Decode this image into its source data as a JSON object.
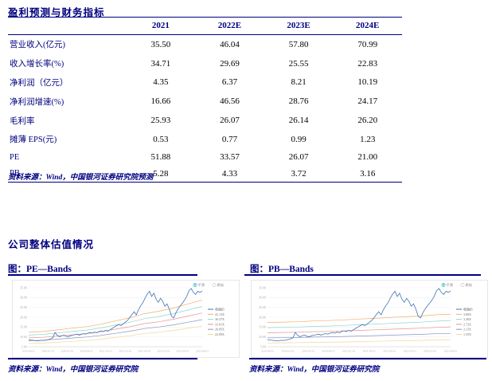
{
  "section1_title": "盈利预测与财务指标",
  "table": {
    "header": [
      "2021",
      "2022E",
      "2023E",
      "2024E"
    ],
    "rows": [
      {
        "label": "营业收入(亿元)",
        "values": [
          "35.50",
          "46.04",
          "57.80",
          "70.99"
        ]
      },
      {
        "label": "收入增长率(%)",
        "values": [
          "34.71",
          "29.69",
          "25.55",
          "22.83"
        ]
      },
      {
        "label": "净利润（亿元）",
        "values": [
          "4.35",
          "6.37",
          "8.21",
          "10.19"
        ]
      },
      {
        "label": "净利润增速(%)",
        "values": [
          "16.66",
          "46.56",
          "28.76",
          "24.17"
        ]
      },
      {
        "label": "毛利率",
        "values": [
          "25.93",
          "26.07",
          "26.14",
          "26.20"
        ]
      },
      {
        "label": "摊薄 EPS(元)",
        "values": [
          "0.53",
          "0.77",
          "0.99",
          "1.23"
        ]
      },
      {
        "label": "PE",
        "values": [
          "51.88",
          "33.57",
          "26.07",
          "21.00"
        ]
      },
      {
        "label": "PB",
        "values": [
          "5.28",
          "4.33",
          "3.72",
          "3.16"
        ]
      }
    ],
    "source": "资料来源：Wind，中国银河证券研究院预测"
  },
  "section2_title": "公司整体估值情况",
  "figures": [
    {
      "caption": "图：PE—Bands",
      "source": "资料来源：Wind，中国银河证券研究院"
    },
    {
      "caption": "图：PB—Bands",
      "source": "资料来源：Wind，中国银河证券研究院"
    }
  ],
  "colors": {
    "accent_navy": "#000080",
    "price_line": "#3F74B5",
    "band_orange": "#F2AE6B",
    "band_teal": "#8FD6CE",
    "band_red": "#E89393",
    "band_slate": "#8A93C4",
    "band_yellow": "#F3D89A",
    "radio_selected": "#2FB8C5"
  },
  "chart_data": [
    {
      "type": "line",
      "name": "pe-bands-chart",
      "title": "PE—Bands",
      "ylim": [
        5,
        35
      ],
      "y_tick_values": [
        35,
        30,
        25,
        20,
        15,
        10,
        5
      ],
      "y_tick_labels": [
        "35.00",
        "30.00",
        "25.00",
        "20.00",
        "15.00",
        "10.00",
        "5.00"
      ],
      "x_tick_labels": [
        "2019-09-01",
        "2020-01-01",
        "2020-05-01",
        "2020-09-01",
        "2021-01-01",
        "2021-05-01",
        "2021-09-01",
        "2022-01-01",
        "2022-05-01",
        "2022-09-01"
      ],
      "legend_position": "right",
      "grid": true,
      "controls": {
        "options": [
          "平滑",
          "原始"
        ],
        "selected": "平滑"
      },
      "series": [
        {
          "name": "收盘价",
          "color": "#3F74B5",
          "values": [
            8.6,
            8.4,
            8.3,
            8.1,
            8.0,
            8.1,
            8.3,
            8.2,
            8.4,
            8.7,
            9.0,
            9.6,
            12.3,
            10.8,
            10.1,
            10.6,
            10.9,
            10.3,
            10.1,
            10.6,
            10.9,
            11.1,
            11.4,
            10.9,
            11.3,
            11.7,
            11.4,
            11.9,
            12.2,
            11.9,
            12.4,
            12.1,
            12.7,
            13.1,
            12.7,
            13.4,
            12.9,
            13.6,
            14.3,
            15.0,
            15.7,
            16.3,
            15.8,
            16.6,
            17.5,
            18.4,
            19.8,
            21.4,
            22.8,
            21.2,
            23.8,
            25.8,
            27.4,
            29.8,
            31.8,
            33.2,
            30.6,
            32.2,
            29.2,
            27.6,
            29.6,
            28.1,
            25.6,
            26.8,
            24.2,
            20.6,
            19.6,
            22.2,
            24.2,
            25.8,
            27.2,
            28.8,
            30.8,
            33.6,
            34.6,
            32.6,
            31.6,
            33.2,
            32.6,
            33.4
          ]
        },
        {
          "name": "41.13X",
          "color": "#F2AE6B",
          "values": [
            12.34,
            12.75,
            13.57,
            14.4,
            15.22,
            16.45,
            18.1,
            19.74,
            21.8,
            23.03,
            24.68,
            26.73,
            28.79
          ]
        },
        {
          "name": "36.37X",
          "color": "#8FD6CE",
          "values": [
            10.91,
            11.27,
            12.0,
            12.73,
            13.46,
            14.55,
            16.0,
            17.46,
            19.28,
            20.37,
            21.82,
            23.64,
            25.46
          ]
        },
        {
          "name": "31.61X",
          "color": "#E89393",
          "values": [
            9.48,
            9.8,
            10.43,
            11.06,
            11.7,
            12.64,
            13.91,
            15.17,
            16.75,
            17.7,
            18.97,
            20.55,
            22.13
          ]
        },
        {
          "name": "26.85X",
          "color": "#8A93C4",
          "values": [
            8.06,
            8.32,
            8.86,
            9.4,
            9.93,
            10.74,
            11.81,
            12.89,
            14.23,
            15.04,
            16.11,
            17.45,
            18.8
          ]
        },
        {
          "name": "22.09X",
          "color": "#F3D89A",
          "values": [
            6.63,
            6.85,
            7.29,
            7.73,
            8.17,
            8.84,
            9.72,
            10.6,
            11.71,
            12.37,
            13.25,
            14.36,
            15.46
          ]
        }
      ]
    },
    {
      "type": "line",
      "name": "pb-bands-chart",
      "title": "PB—Bands",
      "ylim": [
        5,
        35
      ],
      "y_tick_values": [
        35,
        30,
        25,
        20,
        15,
        10,
        5
      ],
      "y_tick_labels": [
        "35.00",
        "30.00",
        "25.00",
        "20.00",
        "15.00",
        "10.00",
        "5.00"
      ],
      "x_tick_labels": [
        "2019-09-01",
        "2020-01-01",
        "2020-05-01",
        "2020-09-01",
        "2021-01-01",
        "2021-05-01",
        "2021-09-01",
        "2022-01-01",
        "2022-05-01",
        "2022-09-01"
      ],
      "legend_position": "right",
      "grid": true,
      "controls": {
        "options": [
          "平滑",
          "原始"
        ],
        "selected": "平滑"
      },
      "series": [
        {
          "name": "收盘价",
          "color": "#3F74B5",
          "values": [
            8.6,
            8.4,
            8.3,
            8.1,
            8.0,
            8.1,
            8.3,
            8.2,
            8.4,
            8.7,
            9.0,
            9.6,
            12.3,
            10.8,
            10.1,
            10.6,
            10.9,
            10.3,
            10.1,
            10.6,
            10.9,
            11.1,
            11.4,
            10.9,
            11.3,
            11.7,
            11.4,
            11.9,
            12.2,
            11.9,
            12.4,
            12.1,
            12.7,
            13.1,
            12.7,
            13.4,
            12.9,
            13.6,
            14.3,
            15.0,
            15.7,
            16.3,
            15.8,
            16.6,
            17.5,
            18.4,
            19.8,
            21.4,
            22.8,
            21.2,
            23.8,
            25.8,
            27.4,
            29.8,
            31.8,
            33.2,
            30.6,
            32.2,
            29.2,
            27.6,
            29.6,
            28.1,
            25.6,
            26.8,
            24.2,
            20.6,
            19.6,
            22.2,
            24.2,
            25.8,
            27.2,
            28.8,
            30.8,
            33.6,
            34.6,
            32.6,
            31.6,
            33.2,
            32.6,
            33.4
          ]
        },
        {
          "name": "3.89X",
          "color": "#F2AE6B",
          "values": [
            17.31,
            17.51,
            17.7,
            18.09,
            18.28,
            18.67,
            19.06,
            19.45,
            19.84,
            20.23,
            20.62,
            21.2,
            21.59
          ]
        },
        {
          "name": "3.30X",
          "color": "#8FD6CE",
          "values": [
            14.69,
            14.85,
            15.02,
            15.35,
            15.51,
            15.84,
            16.17,
            16.5,
            16.83,
            17.16,
            17.49,
            17.99,
            18.32
          ]
        },
        {
          "name": "2.72X",
          "color": "#E89393",
          "values": [
            12.1,
            12.24,
            12.38,
            12.65,
            12.78,
            13.06,
            13.33,
            13.6,
            13.87,
            14.14,
            14.42,
            14.82,
            15.1
          ]
        },
        {
          "name": "2.13X",
          "color": "#8A93C4",
          "values": [
            9.48,
            9.59,
            9.69,
            9.9,
            10.01,
            10.22,
            10.44,
            10.65,
            10.86,
            11.08,
            11.29,
            11.61,
            11.82
          ]
        },
        {
          "name": "1.55X",
          "color": "#F3D89A",
          "values": [
            6.9,
            6.98,
            7.05,
            7.21,
            7.29,
            7.44,
            7.6,
            7.75,
            7.91,
            8.06,
            8.22,
            8.45,
            8.6
          ]
        }
      ]
    }
  ]
}
